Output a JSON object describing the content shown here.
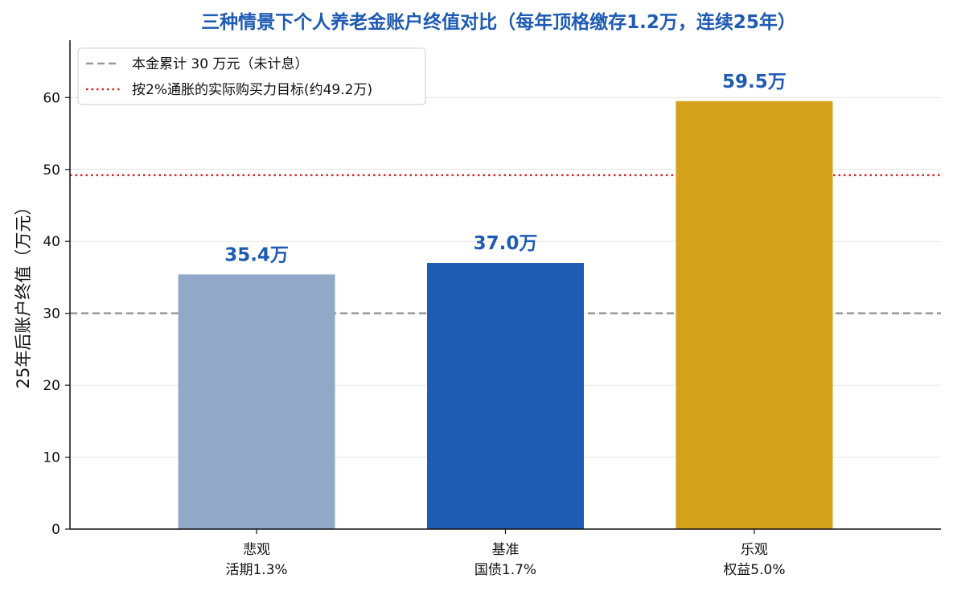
{
  "chart_data": {
    "type": "bar",
    "title": "三种情景下个人养老金账户终值对比（每年顶格缴存1.2万，连续25年）",
    "ylabel": "25年后账户终值（万元）",
    "xlabel": "",
    "ylim": [
      0,
      68
    ],
    "yticks": [
      0,
      10,
      20,
      30,
      40,
      50,
      60
    ],
    "grid": "horizontal",
    "legend_position": "top-left",
    "categories": [
      {
        "line1": "悲观",
        "line2": "活期1.3%"
      },
      {
        "line1": "基准",
        "line2": "国债1.7%"
      },
      {
        "line1": "乐观",
        "line2": "权益5.0%"
      }
    ],
    "values": [
      35.4,
      37.0,
      59.5
    ],
    "value_labels": [
      "35.4万",
      "37.0万",
      "59.5万"
    ],
    "bar_colors": [
      "#91a8c8",
      "#1f5bb3",
      "#d4a11b"
    ],
    "reference_lines": [
      {
        "value": 30,
        "style": "dashed",
        "color": "#999999",
        "label": "本金累计 30 万元（未计息）"
      },
      {
        "value": 49.2,
        "style": "dotted",
        "color": "#d62728",
        "label": "按2%通胀的实际购买力目标(约49.2万)"
      }
    ]
  }
}
